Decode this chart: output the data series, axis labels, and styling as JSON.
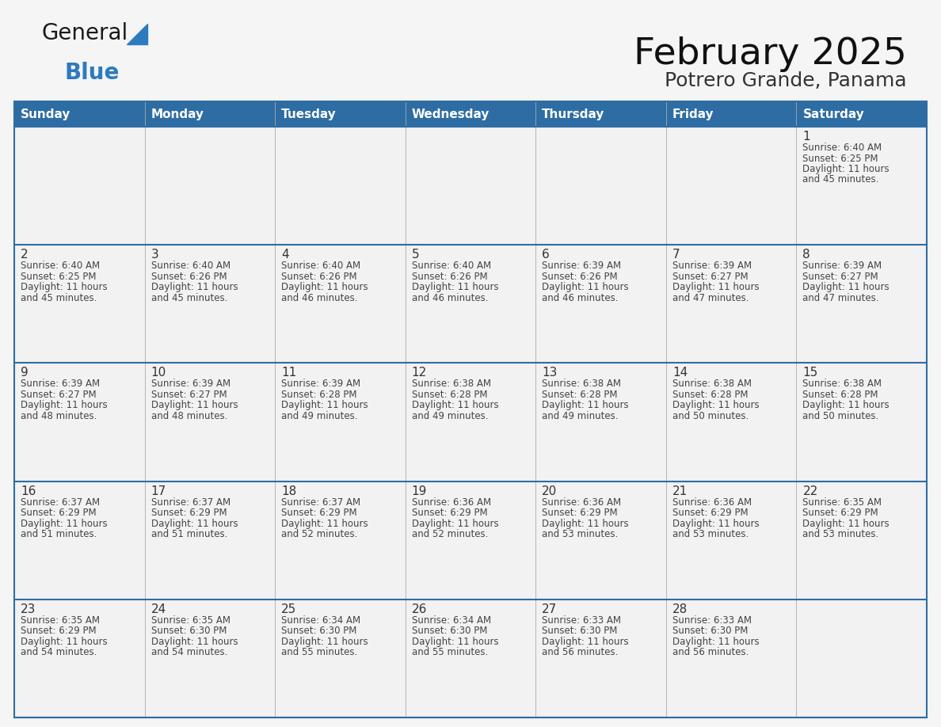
{
  "title": "February 2025",
  "subtitle": "Potrero Grande, Panama",
  "days_of_week": [
    "Sunday",
    "Monday",
    "Tuesday",
    "Wednesday",
    "Thursday",
    "Friday",
    "Saturday"
  ],
  "header_bg_color": "#2e6da4",
  "header_text_color": "#ffffff",
  "cell_bg_color": "#f2f2f2",
  "cell_bg_alt": "#ffffff",
  "grid_line_color": "#2e6da4",
  "vert_line_color": "#aaaaaa",
  "day_number_color": "#333333",
  "info_text_color": "#444444",
  "title_color": "#111111",
  "subtitle_color": "#333333",
  "bg_color": "#f5f5f5",
  "generalblue_text_color": "#1a1a1a",
  "generalblue_blue_color": "#2e7abf",
  "logo_general_size": 20,
  "logo_blue_size": 20,
  "title_fontsize": 34,
  "subtitle_fontsize": 18,
  "header_fontsize": 11,
  "day_num_fontsize": 11,
  "info_fontsize": 8.5,
  "calendar_data": [
    [
      null,
      null,
      null,
      null,
      null,
      null,
      {
        "day": 1,
        "sunrise": "6:40 AM",
        "sunset": "6:25 PM",
        "daylight_line1": "Daylight: 11 hours",
        "daylight_line2": "and 45 minutes."
      }
    ],
    [
      {
        "day": 2,
        "sunrise": "6:40 AM",
        "sunset": "6:25 PM",
        "daylight_line1": "Daylight: 11 hours",
        "daylight_line2": "and 45 minutes."
      },
      {
        "day": 3,
        "sunrise": "6:40 AM",
        "sunset": "6:26 PM",
        "daylight_line1": "Daylight: 11 hours",
        "daylight_line2": "and 45 minutes."
      },
      {
        "day": 4,
        "sunrise": "6:40 AM",
        "sunset": "6:26 PM",
        "daylight_line1": "Daylight: 11 hours",
        "daylight_line2": "and 46 minutes."
      },
      {
        "day": 5,
        "sunrise": "6:40 AM",
        "sunset": "6:26 PM",
        "daylight_line1": "Daylight: 11 hours",
        "daylight_line2": "and 46 minutes."
      },
      {
        "day": 6,
        "sunrise": "6:39 AM",
        "sunset": "6:26 PM",
        "daylight_line1": "Daylight: 11 hours",
        "daylight_line2": "and 46 minutes."
      },
      {
        "day": 7,
        "sunrise": "6:39 AM",
        "sunset": "6:27 PM",
        "daylight_line1": "Daylight: 11 hours",
        "daylight_line2": "and 47 minutes."
      },
      {
        "day": 8,
        "sunrise": "6:39 AM",
        "sunset": "6:27 PM",
        "daylight_line1": "Daylight: 11 hours",
        "daylight_line2": "and 47 minutes."
      }
    ],
    [
      {
        "day": 9,
        "sunrise": "6:39 AM",
        "sunset": "6:27 PM",
        "daylight_line1": "Daylight: 11 hours",
        "daylight_line2": "and 48 minutes."
      },
      {
        "day": 10,
        "sunrise": "6:39 AM",
        "sunset": "6:27 PM",
        "daylight_line1": "Daylight: 11 hours",
        "daylight_line2": "and 48 minutes."
      },
      {
        "day": 11,
        "sunrise": "6:39 AM",
        "sunset": "6:28 PM",
        "daylight_line1": "Daylight: 11 hours",
        "daylight_line2": "and 49 minutes."
      },
      {
        "day": 12,
        "sunrise": "6:38 AM",
        "sunset": "6:28 PM",
        "daylight_line1": "Daylight: 11 hours",
        "daylight_line2": "and 49 minutes."
      },
      {
        "day": 13,
        "sunrise": "6:38 AM",
        "sunset": "6:28 PM",
        "daylight_line1": "Daylight: 11 hours",
        "daylight_line2": "and 49 minutes."
      },
      {
        "day": 14,
        "sunrise": "6:38 AM",
        "sunset": "6:28 PM",
        "daylight_line1": "Daylight: 11 hours",
        "daylight_line2": "and 50 minutes."
      },
      {
        "day": 15,
        "sunrise": "6:38 AM",
        "sunset": "6:28 PM",
        "daylight_line1": "Daylight: 11 hours",
        "daylight_line2": "and 50 minutes."
      }
    ],
    [
      {
        "day": 16,
        "sunrise": "6:37 AM",
        "sunset": "6:29 PM",
        "daylight_line1": "Daylight: 11 hours",
        "daylight_line2": "and 51 minutes."
      },
      {
        "day": 17,
        "sunrise": "6:37 AM",
        "sunset": "6:29 PM",
        "daylight_line1": "Daylight: 11 hours",
        "daylight_line2": "and 51 minutes."
      },
      {
        "day": 18,
        "sunrise": "6:37 AM",
        "sunset": "6:29 PM",
        "daylight_line1": "Daylight: 11 hours",
        "daylight_line2": "and 52 minutes."
      },
      {
        "day": 19,
        "sunrise": "6:36 AM",
        "sunset": "6:29 PM",
        "daylight_line1": "Daylight: 11 hours",
        "daylight_line2": "and 52 minutes."
      },
      {
        "day": 20,
        "sunrise": "6:36 AM",
        "sunset": "6:29 PM",
        "daylight_line1": "Daylight: 11 hours",
        "daylight_line2": "and 53 minutes."
      },
      {
        "day": 21,
        "sunrise": "6:36 AM",
        "sunset": "6:29 PM",
        "daylight_line1": "Daylight: 11 hours",
        "daylight_line2": "and 53 minutes."
      },
      {
        "day": 22,
        "sunrise": "6:35 AM",
        "sunset": "6:29 PM",
        "daylight_line1": "Daylight: 11 hours",
        "daylight_line2": "and 53 minutes."
      }
    ],
    [
      {
        "day": 23,
        "sunrise": "6:35 AM",
        "sunset": "6:29 PM",
        "daylight_line1": "Daylight: 11 hours",
        "daylight_line2": "and 54 minutes."
      },
      {
        "day": 24,
        "sunrise": "6:35 AM",
        "sunset": "6:30 PM",
        "daylight_line1": "Daylight: 11 hours",
        "daylight_line2": "and 54 minutes."
      },
      {
        "day": 25,
        "sunrise": "6:34 AM",
        "sunset": "6:30 PM",
        "daylight_line1": "Daylight: 11 hours",
        "daylight_line2": "and 55 minutes."
      },
      {
        "day": 26,
        "sunrise": "6:34 AM",
        "sunset": "6:30 PM",
        "daylight_line1": "Daylight: 11 hours",
        "daylight_line2": "and 55 minutes."
      },
      {
        "day": 27,
        "sunrise": "6:33 AM",
        "sunset": "6:30 PM",
        "daylight_line1": "Daylight: 11 hours",
        "daylight_line2": "and 56 minutes."
      },
      {
        "day": 28,
        "sunrise": "6:33 AM",
        "sunset": "6:30 PM",
        "daylight_line1": "Daylight: 11 hours",
        "daylight_line2": "and 56 minutes."
      },
      null
    ]
  ],
  "num_rows": 5,
  "num_cols": 7
}
